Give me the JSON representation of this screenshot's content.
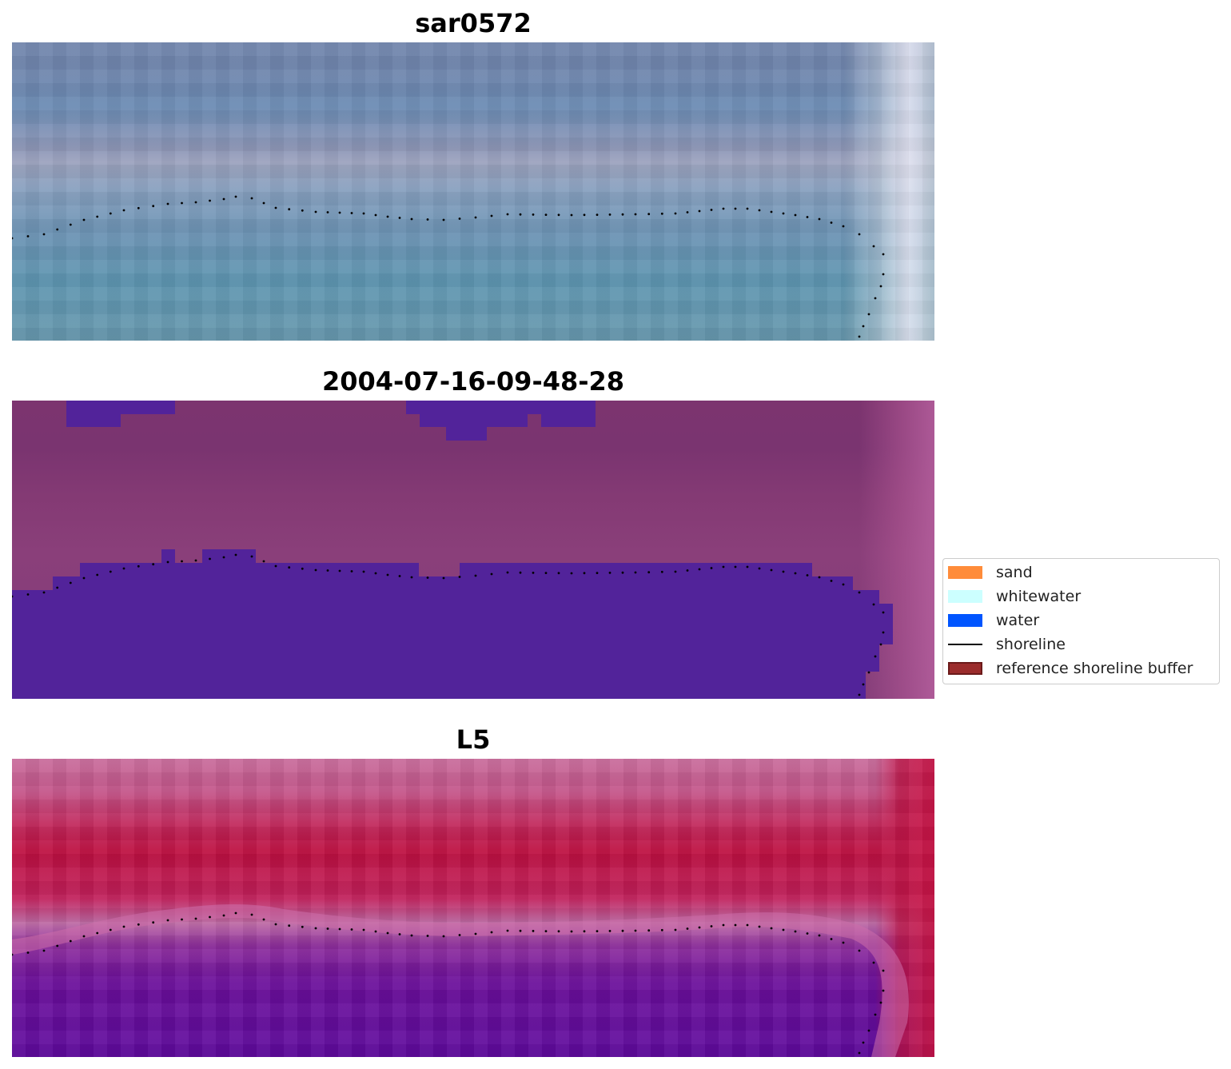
{
  "panels": [
    {
      "title": "sar0572"
    },
    {
      "title": "2004-07-16-09-48-28"
    },
    {
      "title": "L5"
    }
  ],
  "legend": {
    "items": [
      {
        "label": "sand",
        "color": "#ff8c3a",
        "kind": "patch"
      },
      {
        "label": "whitewater",
        "color": "#ccffff",
        "kind": "patch"
      },
      {
        "label": "water",
        "color": "#0055ff",
        "kind": "patch"
      },
      {
        "label": "shoreline",
        "color": "#000000",
        "kind": "line"
      },
      {
        "label": "reference shoreline buffer",
        "color": "#9b2c2c",
        "kind": "patch"
      }
    ]
  },
  "colors": {
    "classified_water": "#52239a"
  }
}
